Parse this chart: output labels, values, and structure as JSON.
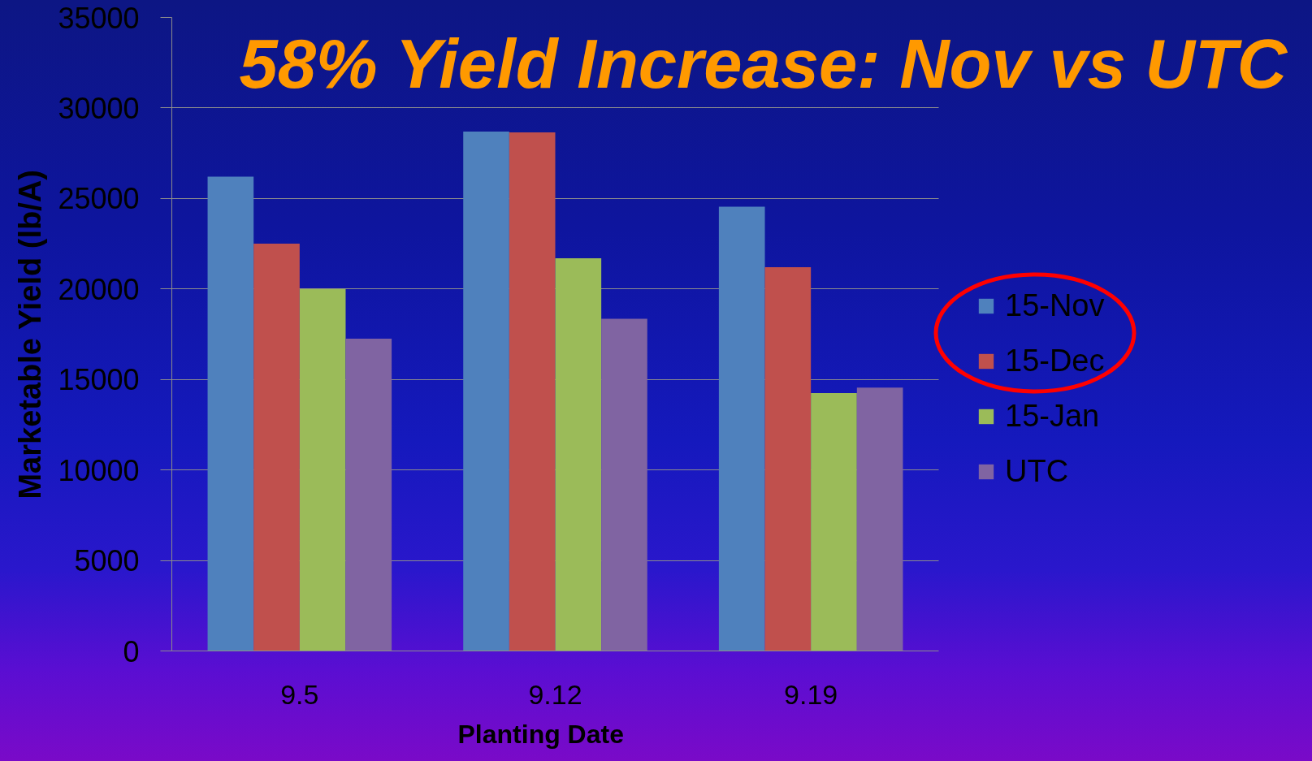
{
  "chart_data": {
    "type": "bar",
    "title": "58% Yield Increase: Nov vs UTC",
    "xlabel": "Planting Date",
    "ylabel": "Marketable Yield (lb/A)",
    "categories": [
      "9.5",
      "9.12",
      "9.19"
    ],
    "series": [
      {
        "name": "15-Nov",
        "color": "#4f81bd",
        "values": [
          26200,
          28700,
          24550
        ]
      },
      {
        "name": "15-Dec",
        "color": "#c0504d",
        "values": [
          22500,
          28650,
          21200
        ]
      },
      {
        "name": "15-Jan",
        "color": "#9bbb59",
        "values": [
          20000,
          21700,
          14250
        ]
      },
      {
        "name": "UTC",
        "color": "#8064a2",
        "values": [
          17250,
          18350,
          14550
        ]
      }
    ],
    "ylim": [
      0,
      35000
    ],
    "yticks": [
      0,
      5000,
      10000,
      15000,
      20000,
      25000,
      30000,
      35000
    ],
    "grid": "y",
    "legend": "right"
  }
}
